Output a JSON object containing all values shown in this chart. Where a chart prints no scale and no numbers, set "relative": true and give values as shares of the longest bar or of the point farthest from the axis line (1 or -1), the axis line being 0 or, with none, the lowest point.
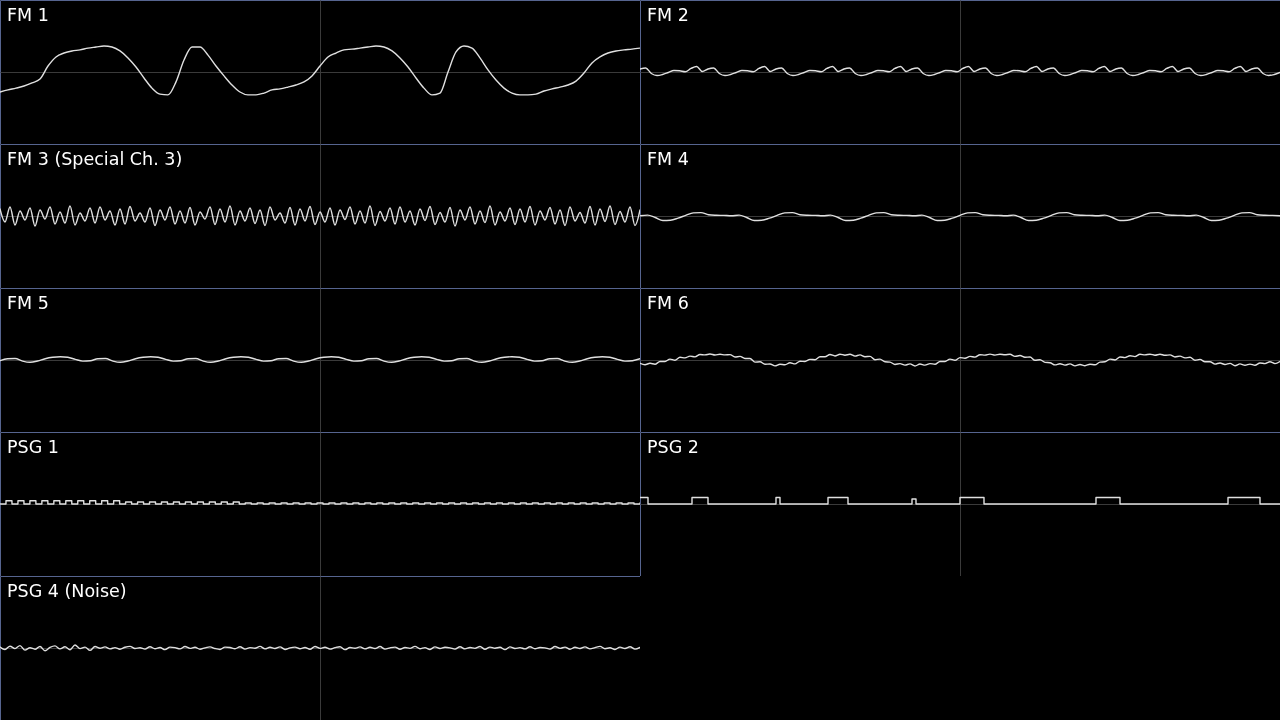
{
  "chart_data": [
    {
      "type": "line",
      "title": "FM 1",
      "color": "#e0e0e0",
      "relative": true,
      "categories": [
        null,
        null,
        null,
        null,
        null,
        null,
        null,
        null,
        null,
        null,
        null,
        null,
        null,
        null,
        null,
        null,
        null,
        null,
        null,
        null,
        null,
        null,
        null,
        null,
        null,
        null,
        null,
        null,
        null,
        null,
        null,
        null,
        null,
        null,
        null,
        null,
        null,
        null,
        null,
        null,
        null,
        null,
        null,
        null,
        null,
        null,
        null,
        null,
        null,
        null,
        null,
        null,
        null,
        null,
        null,
        null,
        null,
        null,
        null,
        null,
        null,
        null,
        null,
        null,
        null,
        null,
        null,
        null,
        null,
        null,
        null,
        null,
        null,
        null,
        null,
        null,
        null,
        null,
        null,
        null,
        null
      ],
      "values": [
        -0.77,
        -0.69,
        -0.62,
        -0.54,
        -0.42,
        -0.27,
        0.23,
        0.58,
        0.73,
        0.81,
        0.85,
        0.92,
        0.96,
        1,
        0.96,
        0.81,
        0.54,
        0.19,
        -0.23,
        -0.62,
        -0.85,
        -0.88,
        -0.38,
        0.46,
        0.96,
        0.96,
        0.65,
        0.23,
        -0.15,
        -0.5,
        -0.77,
        -0.88,
        -0.88,
        -0.81,
        -0.69,
        -0.65,
        -0.58,
        -0.5,
        -0.38,
        -0.15,
        0.23,
        0.58,
        0.73,
        0.85,
        0.88,
        0.92,
        0.96,
        1,
        0.96,
        0.81,
        0.54,
        0.19,
        -0.23,
        -0.62,
        -0.88,
        -0.81,
        0,
        0.77,
        1,
        0.92,
        0.54,
        0.08,
        -0.31,
        -0.62,
        -0.81,
        -0.88,
        -0.88,
        -0.85,
        -0.73,
        -0.65,
        -0.58,
        -0.5,
        -0.35,
        -0.04,
        0.35,
        0.58,
        0.73,
        0.81,
        0.85,
        0.88,
        0.92
      ]
    },
    {
      "type": "line",
      "title": "FM 2",
      "color": "#e0e0e0",
      "relative": true,
      "categories": [
        null,
        null,
        null,
        null,
        null,
        null,
        null,
        null,
        null,
        null,
        null,
        null,
        null,
        null,
        null,
        null,
        null,
        null,
        null,
        null,
        null,
        null,
        null,
        null,
        null,
        null,
        null,
        null,
        null,
        null,
        null,
        null,
        null,
        null,
        null,
        null,
        null,
        null,
        null,
        null,
        null,
        null,
        null,
        null,
        null,
        null,
        null,
        null,
        null,
        null,
        null,
        null,
        null,
        null,
        null,
        null,
        null,
        null,
        null,
        null,
        null,
        null,
        null,
        null,
        null,
        null,
        null,
        null,
        null,
        null,
        null,
        null,
        null,
        null,
        null,
        null,
        null,
        null,
        null,
        null,
        null,
        null,
        null,
        null,
        null,
        null,
        null,
        null,
        null,
        null,
        null,
        null,
        null,
        null,
        null,
        null,
        null,
        null,
        null,
        null,
        null,
        null,
        null,
        null,
        null,
        null,
        null,
        null,
        null,
        null,
        null,
        null,
        null,
        null
      ],
      "values": [
        0.55,
        0.73,
        -0.27,
        -0.64,
        -0.45,
        -0.09,
        0.27,
        0.22,
        0.05,
        0.64,
        1,
        0.09,
        0.55,
        0.73,
        -0.27,
        -0.64,
        -0.45,
        -0.09,
        0.27,
        0.22,
        0.05,
        0.64,
        1,
        0.09,
        0.55,
        0.73,
        -0.27,
        -0.64,
        -0.45,
        -0.09,
        0.27,
        0.22,
        0.05,
        0.64,
        1,
        0.09,
        0.55,
        0.73,
        -0.27,
        -0.64,
        -0.45,
        -0.09,
        0.27,
        0.22,
        0.05,
        0.64,
        1,
        0.09,
        0.55,
        0.73,
        -0.27,
        -0.64,
        -0.45,
        -0.09,
        0.27,
        0.22,
        0.05,
        0.64,
        1,
        0.09,
        0.55,
        0.73,
        -0.27,
        -0.64,
        -0.45,
        -0.09,
        0.27,
        0.22,
        0.05,
        0.64,
        1,
        0.09,
        0.55,
        0.73,
        -0.27,
        -0.64,
        -0.45,
        -0.09,
        0.27,
        0.22,
        0.05,
        0.64,
        1,
        0.09,
        0.55,
        0.73,
        -0.27,
        -0.64,
        -0.45,
        -0.09,
        0.27,
        0.22,
        0.05,
        0.64,
        1,
        0.09,
        0.55,
        0.73,
        -0.27,
        -0.64,
        -0.45,
        -0.09,
        0.27,
        0.22,
        0.05,
        0.64,
        1,
        0.09,
        0.55,
        0.73,
        -0.27,
        -0.64,
        -0.45,
        -0.09
      ]
    },
    {
      "type": "line",
      "title": "FM 3 (Special Ch. 3)",
      "color": "#e0e0e0",
      "relative": true,
      "categories": [
        null,
        null,
        null,
        null,
        null,
        null,
        null,
        null,
        null,
        null,
        null,
        null,
        null,
        null,
        null,
        null,
        null,
        null,
        null,
        null,
        null,
        null,
        null,
        null,
        null,
        null,
        null,
        null,
        null,
        null,
        null,
        null,
        null,
        null,
        null,
        null,
        null,
        null,
        null,
        null,
        null,
        null,
        null,
        null,
        null,
        null,
        null,
        null,
        null,
        null,
        null,
        null,
        null,
        null,
        null,
        null,
        null,
        null,
        null,
        null,
        null,
        null,
        null,
        null,
        null,
        null,
        null,
        null,
        null,
        null,
        null,
        null,
        null,
        null,
        null,
        null,
        null,
        null,
        null,
        null,
        null,
        null,
        null,
        null,
        null,
        null,
        null,
        null,
        null,
        null,
        null,
        null,
        null,
        null,
        null,
        null,
        null,
        null,
        null,
        null,
        null,
        null,
        null,
        null,
        null,
        null,
        null,
        null,
        null,
        null,
        null,
        null,
        null,
        null,
        null,
        null,
        null,
        null,
        null,
        null,
        null,
        null,
        null,
        null,
        null,
        null,
        null,
        null,
        null
      ],
      "values": [
        0.7,
        -0.6,
        0.9,
        -0.9,
        0.5,
        -0.4,
        0.8,
        -1,
        0.6,
        -0.3,
        0.9,
        -0.8,
        0.4,
        -0.7,
        1,
        -0.9,
        0.3,
        -0.5,
        0.8,
        -0.7,
        0.9,
        -0.4,
        0.5,
        -0.9,
        0.7,
        -0.8,
        0.95,
        -0.5,
        0.3,
        -0.6,
        0.8,
        -0.95,
        0.6,
        -0.4,
        0.9,
        -0.8,
        0.5,
        -0.7,
        0.85,
        -0.9,
        0.4,
        -0.3,
        0.9,
        -0.85,
        0.7,
        -0.6,
        1,
        -0.9,
        0.5,
        -0.5,
        0.8,
        -0.75,
        0.6,
        -0.95,
        0.9,
        -0.4,
        0.3,
        -0.7,
        0.85,
        -0.9,
        0.7,
        -0.5,
        0.95,
        -0.85,
        0.4,
        -0.6,
        0.8,
        -0.9,
        0.6,
        -0.35,
        0.9,
        -0.8,
        0.5,
        -0.7,
        1,
        -0.95,
        0.45,
        -0.5,
        0.8,
        -0.8,
        0.9,
        -0.6,
        0.5,
        -0.9,
        0.7,
        -0.45,
        0.95,
        -0.85,
        0.35,
        -0.6,
        0.85,
        -1,
        0.6,
        -0.4,
        0.9,
        -0.8,
        0.5,
        -0.65,
        1,
        -0.9,
        0.4,
        -0.5,
        0.8,
        -0.85,
        0.7,
        -0.6,
        0.95,
        -0.9,
        0.5,
        -0.4,
        0.85,
        -0.8,
        0.6,
        -0.95,
        0.9,
        -0.5,
        0.35,
        -0.7,
        0.95,
        -0.9,
        0.7,
        -0.55,
        1,
        -0.85,
        0.45,
        -0.6,
        0.9,
        -0.95,
        0.6
      ]
    },
    {
      "type": "line",
      "title": "FM 4",
      "color": "#e0e0e0",
      "relative": true,
      "categories": [
        null,
        null,
        null,
        null,
        null,
        null,
        null,
        null,
        null,
        null,
        null,
        null,
        null,
        null,
        null,
        null,
        null,
        null,
        null,
        null,
        null,
        null,
        null,
        null,
        null,
        null,
        null,
        null,
        null,
        null,
        null,
        null,
        null,
        null,
        null,
        null,
        null,
        null,
        null,
        null,
        null,
        null,
        null,
        null,
        null,
        null,
        null,
        null,
        null,
        null,
        null,
        null,
        null,
        null,
        null,
        null,
        null,
        null,
        null,
        null,
        null,
        null,
        null,
        null,
        null,
        null,
        null,
        null,
        null,
        null,
        null,
        null,
        null,
        null,
        null,
        null,
        null,
        null,
        null,
        null,
        null,
        null,
        null,
        null,
        null
      ],
      "values": [
        0.06,
        0.19,
        -0.33,
        -1,
        -0.93,
        -0.47,
        0.13,
        0.69,
        0.76,
        0.29,
        0.17,
        0.13,
        0.06,
        0.19,
        -0.33,
        -1,
        -0.93,
        -0.47,
        0.13,
        0.69,
        0.76,
        0.29,
        0.17,
        0.13,
        0.06,
        0.19,
        -0.33,
        -1,
        -0.93,
        -0.47,
        0.13,
        0.69,
        0.76,
        0.29,
        0.17,
        0.13,
        0.06,
        0.19,
        -0.33,
        -1,
        -0.93,
        -0.47,
        0.13,
        0.69,
        0.76,
        0.29,
        0.17,
        0.13,
        0.06,
        0.19,
        -0.33,
        -1,
        -0.93,
        -0.47,
        0.13,
        0.69,
        0.76,
        0.29,
        0.17,
        0.13,
        0.06,
        0.19,
        -0.33,
        -1,
        -0.93,
        -0.47,
        0.13,
        0.69,
        0.76,
        0.29,
        0.17,
        0.13,
        0.06,
        0.19,
        -0.33,
        -1,
        -0.93,
        -0.47,
        0.13,
        0.69,
        0.76,
        0.29,
        0.17,
        0.13,
        0.06
      ]
    },
    {
      "type": "line",
      "title": "FM 5",
      "color": "#e0e0e0",
      "relative": true,
      "categories": [
        null,
        null,
        null,
        null,
        null,
        null,
        null,
        null,
        null,
        null,
        null,
        null,
        null,
        null,
        null,
        null,
        null,
        null,
        null,
        null,
        null,
        null,
        null,
        null,
        null,
        null,
        null,
        null,
        null,
        null,
        null,
        null,
        null,
        null,
        null,
        null,
        null,
        null,
        null,
        null,
        null,
        null,
        null,
        null,
        null,
        null,
        null,
        null,
        null,
        null,
        null,
        null,
        null,
        null,
        null,
        null,
        null,
        null,
        null,
        null,
        null,
        null,
        null,
        null,
        null,
        null,
        null,
        null,
        null,
        null,
        null,
        null,
        null,
        null,
        null,
        null,
        null,
        null,
        null,
        null,
        null,
        null,
        null,
        null,
        null,
        null
      ],
      "values": [
        -0.21,
        0.39,
        0.45,
        -0.33,
        -0.7,
        -0.3,
        0.39,
        0.82,
        1,
        0.82,
        0.21,
        -0.33,
        -0.21,
        0.39,
        0.45,
        -0.33,
        -0.7,
        -0.3,
        0.39,
        0.82,
        1,
        0.82,
        0.21,
        -0.33,
        -0.21,
        0.39,
        0.45,
        -0.33,
        -0.7,
        -0.3,
        0.39,
        0.82,
        1,
        0.82,
        0.21,
        -0.33,
        -0.21,
        0.39,
        0.45,
        -0.33,
        -0.7,
        -0.3,
        0.39,
        0.82,
        1,
        0.82,
        0.21,
        -0.33,
        -0.21,
        0.39,
        0.45,
        -0.33,
        -0.7,
        -0.3,
        0.39,
        0.82,
        1,
        0.82,
        0.21,
        -0.33,
        -0.21,
        0.39,
        0.45,
        -0.33,
        -0.7,
        -0.3,
        0.39,
        0.82,
        1,
        0.82,
        0.21,
        -0.33,
        -0.21,
        0.39,
        0.45,
        -0.33,
        -0.7,
        -0.3,
        0.39,
        0.82,
        1,
        0.82,
        0.21,
        -0.33,
        -0.21,
        0.39
      ]
    },
    {
      "type": "line",
      "title": "FM 6",
      "color": "#e0e0e0",
      "relative": true,
      "categories": [
        null,
        null,
        null,
        null,
        null,
        null,
        null,
        null,
        null,
        null,
        null,
        null,
        null,
        null,
        null,
        null,
        null,
        null,
        null,
        null,
        null,
        null,
        null,
        null,
        null,
        null,
        null,
        null,
        null,
        null,
        null,
        null,
        null,
        null,
        null,
        null,
        null,
        null,
        null,
        null,
        null,
        null,
        null,
        null,
        null,
        null,
        null,
        null,
        null,
        null,
        null,
        null,
        null,
        null,
        null,
        null,
        null,
        null,
        null,
        null,
        null,
        null,
        null,
        null,
        null,
        null,
        null,
        null,
        null,
        null,
        null,
        null,
        null,
        null,
        null,
        null,
        null,
        null,
        null,
        null,
        null,
        null,
        null,
        null,
        null,
        null,
        null,
        null,
        null,
        null,
        null,
        null,
        null,
        null,
        null,
        null,
        null,
        null,
        null,
        null,
        null,
        null,
        null,
        null,
        null,
        null,
        null,
        null,
        null,
        null,
        null,
        null,
        null,
        null,
        null,
        null,
        null,
        null,
        null,
        null,
        null,
        null,
        null,
        null,
        null,
        null,
        null,
        null,
        null
      ],
      "values": [
        -0.55,
        -0.78,
        -0.55,
        -0.7,
        -0.25,
        -0.25,
        0.15,
        -0.05,
        0.45,
        0.35,
        0.65,
        0.52,
        0.92,
        0.85,
        1,
        0.83,
        0.95,
        0.85,
        0.9,
        0.5,
        0.6,
        0.25,
        0.25,
        -0.35,
        -0.3,
        -0.7,
        -0.67,
        -0.98,
        -0.7,
        -0.8,
        -0.45,
        -0.65,
        -0.2,
        -0.25,
        0.1,
        0.05,
        0.55,
        0.55,
        0.92,
        0.67,
        0.97,
        0.8,
        0.95,
        0.65,
        0.85,
        0.55,
        0.6,
        0.05,
        0.15,
        -0.3,
        -0.35,
        -0.75,
        -0.6,
        -0.85,
        -0.65,
        -1,
        -0.67,
        -0.85,
        -0.6,
        -0.7,
        -0.25,
        -0.25,
        0.15,
        -0.05,
        0.4,
        0.3,
        0.6,
        0.48,
        0.88,
        0.82,
        0.98,
        0.82,
        0.96,
        0.87,
        0.95,
        0.6,
        0.75,
        0.45,
        0.5,
        -0.05,
        0.05,
        -0.4,
        -0.45,
        -0.82,
        -0.62,
        -0.85,
        -0.65,
        -0.98,
        -0.75,
        -0.95,
        -0.7,
        -0.8,
        -0.35,
        -0.3,
        0.15,
        0,
        0.5,
        0.4,
        0.7,
        0.57,
        0.95,
        0.85,
        0.97,
        0.8,
        0.96,
        0.78,
        0.85,
        0.5,
        0.65,
        0.35,
        0.45,
        -0.05,
        0.1,
        -0.3,
        -0.3,
        -0.68,
        -0.5,
        -0.75,
        -0.56,
        -0.95,
        -0.65,
        -0.88,
        -0.69,
        -0.88,
        -0.5,
        -0.6,
        -0.3,
        -0.6,
        -0.25
      ]
    },
    {
      "type": "step",
      "title": "PSG 1",
      "color": "#e0e0e0",
      "relative": true,
      "categories": [
        null,
        null,
        null,
        null,
        null,
        null,
        null,
        null,
        null,
        null,
        null,
        null,
        null,
        null,
        null,
        null,
        null,
        null,
        null,
        null,
        null,
        null,
        null,
        null,
        null,
        null,
        null,
        null,
        null,
        null,
        null,
        null,
        null,
        null,
        null,
        null,
        null,
        null,
        null,
        null,
        null,
        null,
        null,
        null,
        null,
        null,
        null,
        null,
        null,
        null,
        null,
        null,
        null,
        null,
        null,
        null,
        null,
        null,
        null,
        null,
        null,
        null,
        null,
        null,
        null,
        null,
        null,
        null,
        null,
        null,
        null,
        null,
        null,
        null,
        null,
        null,
        null,
        null,
        null,
        null,
        null,
        null,
        null,
        null,
        null,
        null,
        null,
        null,
        null,
        null,
        null,
        null,
        null,
        null,
        null,
        null,
        null,
        null,
        null,
        null,
        null,
        null,
        null,
        null,
        null,
        null,
        null,
        null
      ],
      "values": [
        0,
        1,
        0,
        1,
        0,
        1,
        0,
        1,
        0,
        1,
        0,
        1,
        0,
        1,
        0,
        1,
        0,
        1,
        0,
        1,
        0,
        0.6,
        0,
        0.6,
        0,
        0.6,
        0,
        0.6,
        0,
        0.6,
        0,
        0.6,
        0,
        0.6,
        0,
        0.6,
        0,
        0.6,
        0,
        0.6,
        0,
        0.3,
        0,
        0.3,
        0,
        0.3,
        0,
        0.3,
        0,
        0.3,
        0,
        0.3,
        0,
        0.3,
        0,
        0.3,
        0,
        0.3,
        0,
        0.3,
        0,
        0.3,
        0,
        0.3,
        0,
        0.3,
        0,
        0.3,
        0,
        0.3,
        0,
        0.3,
        0,
        0.3,
        0,
        0.3,
        0,
        0.3,
        0,
        0.3,
        0,
        0.3,
        0,
        0.3,
        0,
        0.3,
        0,
        0.3,
        0,
        0.3,
        0,
        0.3,
        0,
        0.3,
        0,
        0.3,
        0,
        0.3,
        0,
        0.3,
        0,
        0.3,
        0,
        0.3,
        0,
        0.3,
        0,
        0.3
      ]
    },
    {
      "type": "step",
      "title": "PSG 2",
      "color": "#e0e0e0",
      "relative": true,
      "categories": [
        null,
        null,
        null,
        null,
        null,
        null,
        null,
        null,
        null,
        null,
        null,
        null,
        null,
        null,
        null,
        null,
        null,
        null,
        null,
        null,
        null,
        null,
        null,
        null,
        null,
        null,
        null,
        null,
        null,
        null,
        null,
        null,
        null,
        null,
        null,
        null,
        null,
        null,
        null,
        null,
        null,
        null,
        null,
        null,
        null,
        null,
        null,
        null,
        null,
        null,
        null,
        null,
        null,
        null,
        null,
        null,
        null,
        null,
        null,
        null,
        null,
        null,
        null,
        null,
        null,
        null,
        null,
        null,
        null,
        null,
        null,
        null,
        null,
        null,
        null,
        null,
        null,
        null,
        null,
        null,
        null,
        null,
        null,
        null,
        null,
        null,
        null,
        null,
        null,
        null,
        null,
        null,
        null,
        null,
        null,
        null,
        null,
        null,
        null,
        null,
        null,
        null,
        null,
        null,
        null,
        null,
        null,
        null,
        null,
        null,
        null,
        null,
        null,
        null,
        null,
        null,
        null,
        null,
        null,
        null,
        null,
        null,
        null,
        null,
        null,
        null,
        null,
        null,
        null,
        null,
        null,
        null,
        null,
        null,
        null,
        null,
        null,
        null,
        null,
        null,
        null,
        null,
        null,
        null,
        null,
        null,
        null,
        null,
        null,
        null,
        null,
        null,
        null,
        null,
        null,
        null,
        null,
        null,
        null,
        null,
        null
      ],
      "values": [
        1,
        1,
        0,
        0,
        0,
        0,
        0,
        0,
        0,
        0,
        0,
        0,
        0,
        1,
        1,
        1,
        1,
        0,
        0,
        0,
        0,
        0,
        0,
        0,
        0,
        0,
        0,
        0,
        0,
        0,
        0,
        0,
        0,
        0,
        1,
        0,
        0,
        0,
        0,
        0,
        0,
        0,
        0,
        0,
        0,
        0,
        0,
        1,
        1,
        1,
        1,
        1,
        0,
        0,
        0,
        0,
        0,
        0,
        0,
        0,
        0,
        0,
        0,
        0,
        0,
        0,
        0,
        0,
        0.77,
        0,
        0,
        0,
        0,
        0,
        0,
        0,
        0,
        0,
        0,
        0,
        1,
        1,
        1,
        1,
        1,
        1,
        0,
        0,
        0,
        0,
        0,
        0,
        0,
        0,
        0,
        0,
        0,
        0,
        0,
        0,
        0,
        0,
        0,
        0,
        0,
        0,
        0,
        0,
        0,
        0,
        0,
        0,
        0,
        0,
        1,
        1,
        1,
        1,
        1,
        1,
        0,
        0,
        0,
        0,
        0,
        0,
        0,
        0,
        0,
        0,
        0,
        0,
        0,
        0,
        0,
        0,
        0,
        0,
        0,
        0,
        0,
        0,
        0,
        0,
        0,
        0,
        0,
        1,
        1,
        1,
        1,
        1,
        1,
        1,
        1,
        0,
        0,
        0,
        0,
        0,
        0
      ]
    },
    {
      "type": "line",
      "title": "PSG 4 (Noise)",
      "color": "#e0e0e0",
      "relative": true,
      "categories": [
        null,
        null,
        null,
        null,
        null,
        null,
        null,
        null,
        null,
        null,
        null,
        null,
        null,
        null,
        null,
        null,
        null,
        null,
        null,
        null,
        null,
        null,
        null,
        null,
        null,
        null,
        null,
        null,
        null,
        null,
        null,
        null,
        null,
        null,
        null,
        null,
        null,
        null,
        null,
        null,
        null,
        null,
        null,
        null,
        null,
        null,
        null,
        null,
        null,
        null,
        null,
        null,
        null,
        null,
        null,
        null,
        null,
        null,
        null,
        null,
        null,
        null,
        null,
        null,
        null,
        null,
        null,
        null,
        null,
        null,
        null,
        null,
        null,
        null,
        null,
        null,
        null,
        null,
        null,
        null,
        null,
        null,
        null,
        null,
        null,
        null,
        null,
        null,
        null,
        null,
        null,
        null,
        null,
        null,
        null,
        null,
        null,
        null,
        null,
        null,
        null,
        null,
        null,
        null,
        null,
        null,
        null,
        null,
        null,
        null,
        null,
        null,
        null,
        null,
        null,
        null,
        null,
        null,
        null,
        null,
        null,
        null,
        null,
        null,
        null,
        null,
        null,
        null,
        null
      ],
      "values": [
        0.3,
        -0.5,
        0.6,
        -0.2,
        0.8,
        -0.7,
        0.1,
        -0.4,
        0.5,
        -0.9,
        0.2,
        0.7,
        -0.3,
        0.4,
        -0.6,
        1,
        -0.2,
        0.3,
        -0.8,
        0.5,
        -0.06,
        0.36,
        -0.3,
        0.12,
        -0.42,
        0.24,
        0.54,
        -0.18,
        0.06,
        -0.36,
        0.42,
        -0.24,
        0.18,
        -0.54,
        0.3,
        0.12,
        -0.3,
        0.48,
        -0.12,
        0.24,
        -0.42,
        0.06,
        0.36,
        -0.18,
        -0.48,
        0.3,
        0.18,
        -0.24,
        0.42,
        -0.36,
        0.12,
        -0.06,
        0.54,
        -0.3,
        0.24,
        -0.18,
        0.36,
        -0.48,
        0.06,
        0.3,
        -0.24,
        0.18,
        -0.42,
        0.48,
        -0.12,
        0.24,
        -0.36,
        0.12,
        0.42,
        -0.54,
        0.18,
        -0.06,
        0.36,
        -0.3,
        0.24,
        -0.18,
        0.48,
        -0.36,
        0.06,
        0.3,
        -0.42,
        0.18,
        -0.12,
        0.54,
        -0.24,
        0.12,
        -0.48,
        0.36,
        -0.18,
        0.24,
        0.06,
        -0.36,
        0.42,
        -0.3,
        0.18,
        -0.12,
        0.48,
        -0.42,
        0.3,
        -0.06,
        0.24,
        -0.54,
        0.36,
        -0.18,
        0.12,
        -0.3,
        0.42,
        -0.24,
        0.18,
        0.06,
        -0.36,
        0.48,
        -0.12,
        0.3,
        -0.42,
        0.24,
        -0.18,
        0.36,
        -0.3,
        0.12,
        0.54,
        -0.24,
        0.06,
        -0.48,
        0.3,
        -0.18,
        0.42,
        -0.36,
        0.18
      ]
    }
  ]
}
